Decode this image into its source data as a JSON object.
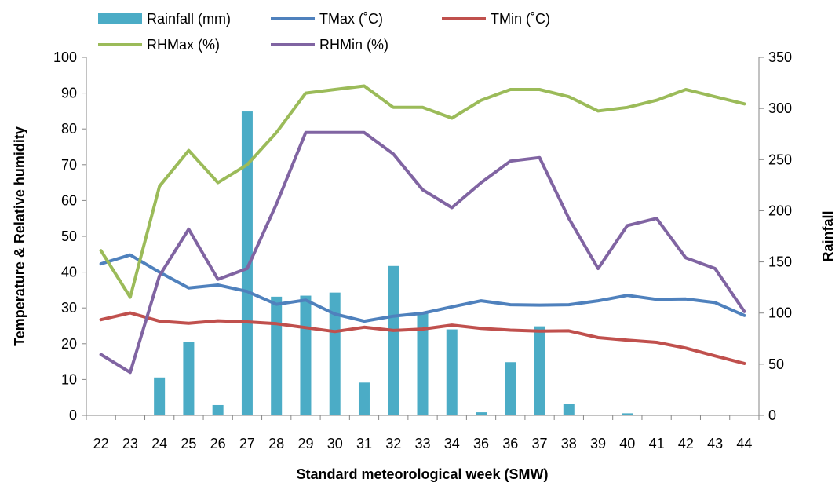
{
  "chart_data": {
    "type": "bar+line",
    "categories": [
      "22",
      "23",
      "24",
      "25",
      "26",
      "27",
      "28",
      "29",
      "30",
      "31",
      "32",
      "33",
      "34",
      "36",
      "36",
      "37",
      "38",
      "39",
      "40",
      "41",
      "42",
      "43",
      "44"
    ],
    "xlabel": "Standard meteorological week (SMW)",
    "ylabel_left": "Temperature & Relative humidity",
    "ylabel_right": "Rainfall",
    "ylim_left": [
      0,
      100
    ],
    "yticks_left": [
      "0",
      "10",
      "20",
      "30",
      "40",
      "50",
      "60",
      "70",
      "80",
      "90",
      "100"
    ],
    "ylim_right": [
      0,
      350
    ],
    "yticks_right": [
      "0",
      "50",
      "100",
      "150",
      "200",
      "250",
      "300",
      "350"
    ],
    "grid": false,
    "legend_position": "top",
    "series": [
      {
        "name": "Rainfall (mm)",
        "type": "bar",
        "axis": "right",
        "color": "#4BACC6",
        "values": [
          0,
          0,
          37,
          72,
          10,
          297,
          116,
          117,
          120,
          32,
          146,
          101,
          84,
          3,
          52,
          87,
          11,
          0,
          2,
          0,
          0,
          0,
          0
        ]
      },
      {
        "name": "TMax (˚C)",
        "type": "line",
        "axis": "left",
        "color": "#4F81BD",
        "values": [
          42.3,
          44.8,
          40.0,
          35.6,
          36.4,
          34.6,
          31.0,
          32.2,
          28.3,
          26.3,
          27.7,
          28.5,
          30.3,
          32.0,
          30.9,
          30.8,
          30.9,
          32.0,
          33.5,
          32.4,
          32.5,
          31.5,
          27.9
        ]
      },
      {
        "name": "TMin (˚C)",
        "type": "line",
        "axis": "left",
        "color": "#C0504D",
        "values": [
          26.7,
          28.6,
          26.3,
          25.7,
          26.4,
          26.1,
          25.6,
          24.5,
          23.4,
          24.6,
          23.7,
          24.1,
          25.2,
          24.3,
          23.8,
          23.5,
          23.6,
          21.7,
          21.0,
          20.4,
          18.8,
          16.6,
          14.5
        ]
      },
      {
        "name": "RHMax (%)",
        "type": "line",
        "axis": "left",
        "color": "#9BBB59",
        "values": [
          46,
          33,
          64,
          74,
          65,
          70,
          79,
          90,
          91,
          92,
          86,
          86,
          83,
          88,
          91,
          91,
          89,
          85,
          86,
          88,
          91,
          89,
          87
        ]
      },
      {
        "name": "RHMin (%)",
        "type": "line",
        "axis": "left",
        "color": "#8064A2",
        "values": [
          17,
          12,
          39,
          52,
          38,
          41,
          59,
          79,
          79,
          79,
          73,
          63,
          58,
          65,
          71,
          72,
          55,
          41,
          53,
          55,
          44,
          41,
          29
        ]
      }
    ]
  }
}
